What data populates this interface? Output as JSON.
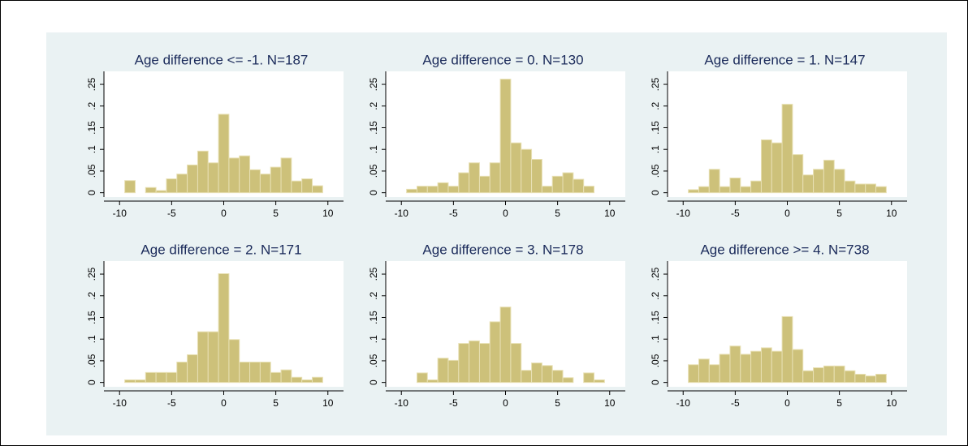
{
  "chart_data": [
    {
      "type": "histogram",
      "title": "Age difference <= -1. N=187",
      "color": "#cdc17a",
      "bins": [
        -9.5,
        -8.5,
        -7.5,
        -6.5,
        -5.5,
        -4.5,
        -3.5,
        -2.5,
        -1.5,
        -0.5,
        0.5,
        1.5,
        2.5,
        3.5,
        4.5,
        5.5,
        6.5,
        7.5,
        8.5,
        9.5
      ],
      "values": [
        0.028,
        0,
        0.012,
        0.005,
        0.032,
        0.043,
        0.064,
        0.096,
        0.069,
        0.181,
        0.08,
        0.085,
        0.053,
        0.043,
        0.059,
        0.08,
        0.027,
        0.032,
        0.016
      ],
      "xlim": [
        -11.5,
        11.5
      ],
      "ylim": [
        -0.01,
        0.28
      ],
      "xticks": [
        -10,
        -5,
        0,
        5,
        10
      ],
      "yticks": [
        0,
        {
          "value": 0.05,
          "label": ".05"
        },
        {
          "value": 0.1,
          "label": ".1"
        },
        {
          "value": 0.15,
          "label": ".15"
        },
        {
          "value": 0.2,
          "label": ".2"
        },
        {
          "value": 0.25,
          "label": ".25"
        }
      ]
    },
    {
      "type": "histogram",
      "title": "Age difference = 0. N=130",
      "color": "#cdc17a",
      "bins": [
        -9.5,
        -8.5,
        -7.5,
        -6.5,
        -5.5,
        -4.5,
        -3.5,
        -2.5,
        -1.5,
        -0.5,
        0.5,
        1.5,
        2.5,
        3.5,
        4.5,
        5.5,
        6.5,
        7.5,
        8.5
      ],
      "values": [
        0.008,
        0.015,
        0.015,
        0.023,
        0.015,
        0.046,
        0.069,
        0.038,
        0.069,
        0.262,
        0.115,
        0.1,
        0.077,
        0.015,
        0.038,
        0.046,
        0.031,
        0.015
      ],
      "xlim": [
        -11.5,
        11.5
      ],
      "ylim": [
        -0.01,
        0.28
      ],
      "xticks": [
        -10,
        -5,
        0,
        5,
        10
      ],
      "yticks": [
        0,
        {
          "value": 0.05,
          "label": ".05"
        },
        {
          "value": 0.1,
          "label": ".1"
        },
        {
          "value": 0.15,
          "label": ".15"
        },
        {
          "value": 0.2,
          "label": ".2"
        },
        {
          "value": 0.25,
          "label": ".25"
        }
      ]
    },
    {
      "type": "histogram",
      "title": "Age difference = 1. N=147",
      "color": "#cdc17a",
      "bins": [
        -9.5,
        -8.5,
        -7.5,
        -6.5,
        -5.5,
        -4.5,
        -3.5,
        -2.5,
        -1.5,
        -0.5,
        0.5,
        1.5,
        2.5,
        3.5,
        4.5,
        5.5,
        6.5,
        7.5,
        8.5,
        9.5
      ],
      "values": [
        0.007,
        0.014,
        0.054,
        0.014,
        0.034,
        0.014,
        0.027,
        0.122,
        0.115,
        0.204,
        0.088,
        0.041,
        0.054,
        0.075,
        0.054,
        0.027,
        0.02,
        0.02,
        0.014
      ],
      "xlim": [
        -11.5,
        11.5
      ],
      "ylim": [
        -0.01,
        0.28
      ],
      "xticks": [
        -10,
        -5,
        0,
        5,
        10
      ],
      "yticks": [
        0,
        {
          "value": 0.05,
          "label": ".05"
        },
        {
          "value": 0.1,
          "label": ".1"
        },
        {
          "value": 0.15,
          "label": ".15"
        },
        {
          "value": 0.2,
          "label": ".2"
        },
        {
          "value": 0.25,
          "label": ".25"
        }
      ]
    },
    {
      "type": "histogram",
      "title": "Age difference = 2. N=171",
      "color": "#cdc17a",
      "bins": [
        -9.5,
        -8.5,
        -7.5,
        -6.5,
        -5.5,
        -4.5,
        -3.5,
        -2.5,
        -1.5,
        -0.5,
        0.5,
        1.5,
        2.5,
        3.5,
        4.5,
        5.5,
        6.5,
        7.5,
        8.5,
        9.5
      ],
      "values": [
        0.006,
        0.006,
        0.023,
        0.023,
        0.023,
        0.047,
        0.064,
        0.117,
        0.117,
        0.251,
        0.099,
        0.047,
        0.047,
        0.047,
        0.023,
        0.029,
        0.012,
        0.006,
        0.012
      ],
      "xlim": [
        -11.5,
        11.5
      ],
      "ylim": [
        -0.01,
        0.28
      ],
      "xticks": [
        -10,
        -5,
        0,
        5,
        10
      ],
      "yticks": [
        0,
        {
          "value": 0.05,
          "label": ".05"
        },
        {
          "value": 0.1,
          "label": ".1"
        },
        {
          "value": 0.15,
          "label": ".15"
        },
        {
          "value": 0.2,
          "label": ".2"
        },
        {
          "value": 0.25,
          "label": ".25"
        }
      ]
    },
    {
      "type": "histogram",
      "title": "Age difference = 3. N=178",
      "color": "#cdc17a",
      "bins": [
        -8.5,
        -7.5,
        -6.5,
        -5.5,
        -4.5,
        -3.5,
        -2.5,
        -1.5,
        -0.5,
        0.5,
        1.5,
        2.5,
        3.5,
        4.5,
        5.5,
        6.5,
        7.5,
        8.5,
        9.5
      ],
      "values": [
        0.022,
        0.006,
        0.056,
        0.051,
        0.09,
        0.096,
        0.09,
        0.14,
        0.174,
        0.09,
        0.028,
        0.045,
        0.039,
        0.028,
        0.011,
        0,
        0.022,
        0.006
      ],
      "xlim": [
        -11.5,
        11.5
      ],
      "ylim": [
        -0.01,
        0.28
      ],
      "xticks": [
        -10,
        -5,
        0,
        5,
        10
      ],
      "yticks": [
        0,
        {
          "value": 0.05,
          "label": ".05"
        },
        {
          "value": 0.1,
          "label": ".1"
        },
        {
          "value": 0.15,
          "label": ".15"
        },
        {
          "value": 0.2,
          "label": ".2"
        },
        {
          "value": 0.25,
          "label": ".25"
        }
      ]
    },
    {
      "type": "histogram",
      "title": "Age difference >= 4. N=738",
      "color": "#cdc17a",
      "bins": [
        -9.5,
        -8.5,
        -7.5,
        -6.5,
        -5.5,
        -4.5,
        -3.5,
        -2.5,
        -1.5,
        -0.5,
        0.5,
        1.5,
        2.5,
        3.5,
        4.5,
        5.5,
        6.5,
        7.5,
        8.5,
        9.5
      ],
      "values": [
        0.041,
        0.054,
        0.041,
        0.065,
        0.084,
        0.065,
        0.072,
        0.08,
        0.072,
        0.152,
        0.076,
        0.027,
        0.034,
        0.038,
        0.038,
        0.027,
        0.019,
        0.015,
        0.019
      ],
      "xlim": [
        -11.5,
        11.5
      ],
      "ylim": [
        -0.01,
        0.28
      ],
      "xticks": [
        -10,
        -5,
        0,
        5,
        10
      ],
      "yticks": [
        0,
        {
          "value": 0.05,
          "label": ".05"
        },
        {
          "value": 0.1,
          "label": ".1"
        },
        {
          "value": 0.15,
          "label": ".15"
        },
        {
          "value": 0.2,
          "label": ".2"
        },
        {
          "value": 0.25,
          "label": ".25"
        }
      ]
    }
  ]
}
